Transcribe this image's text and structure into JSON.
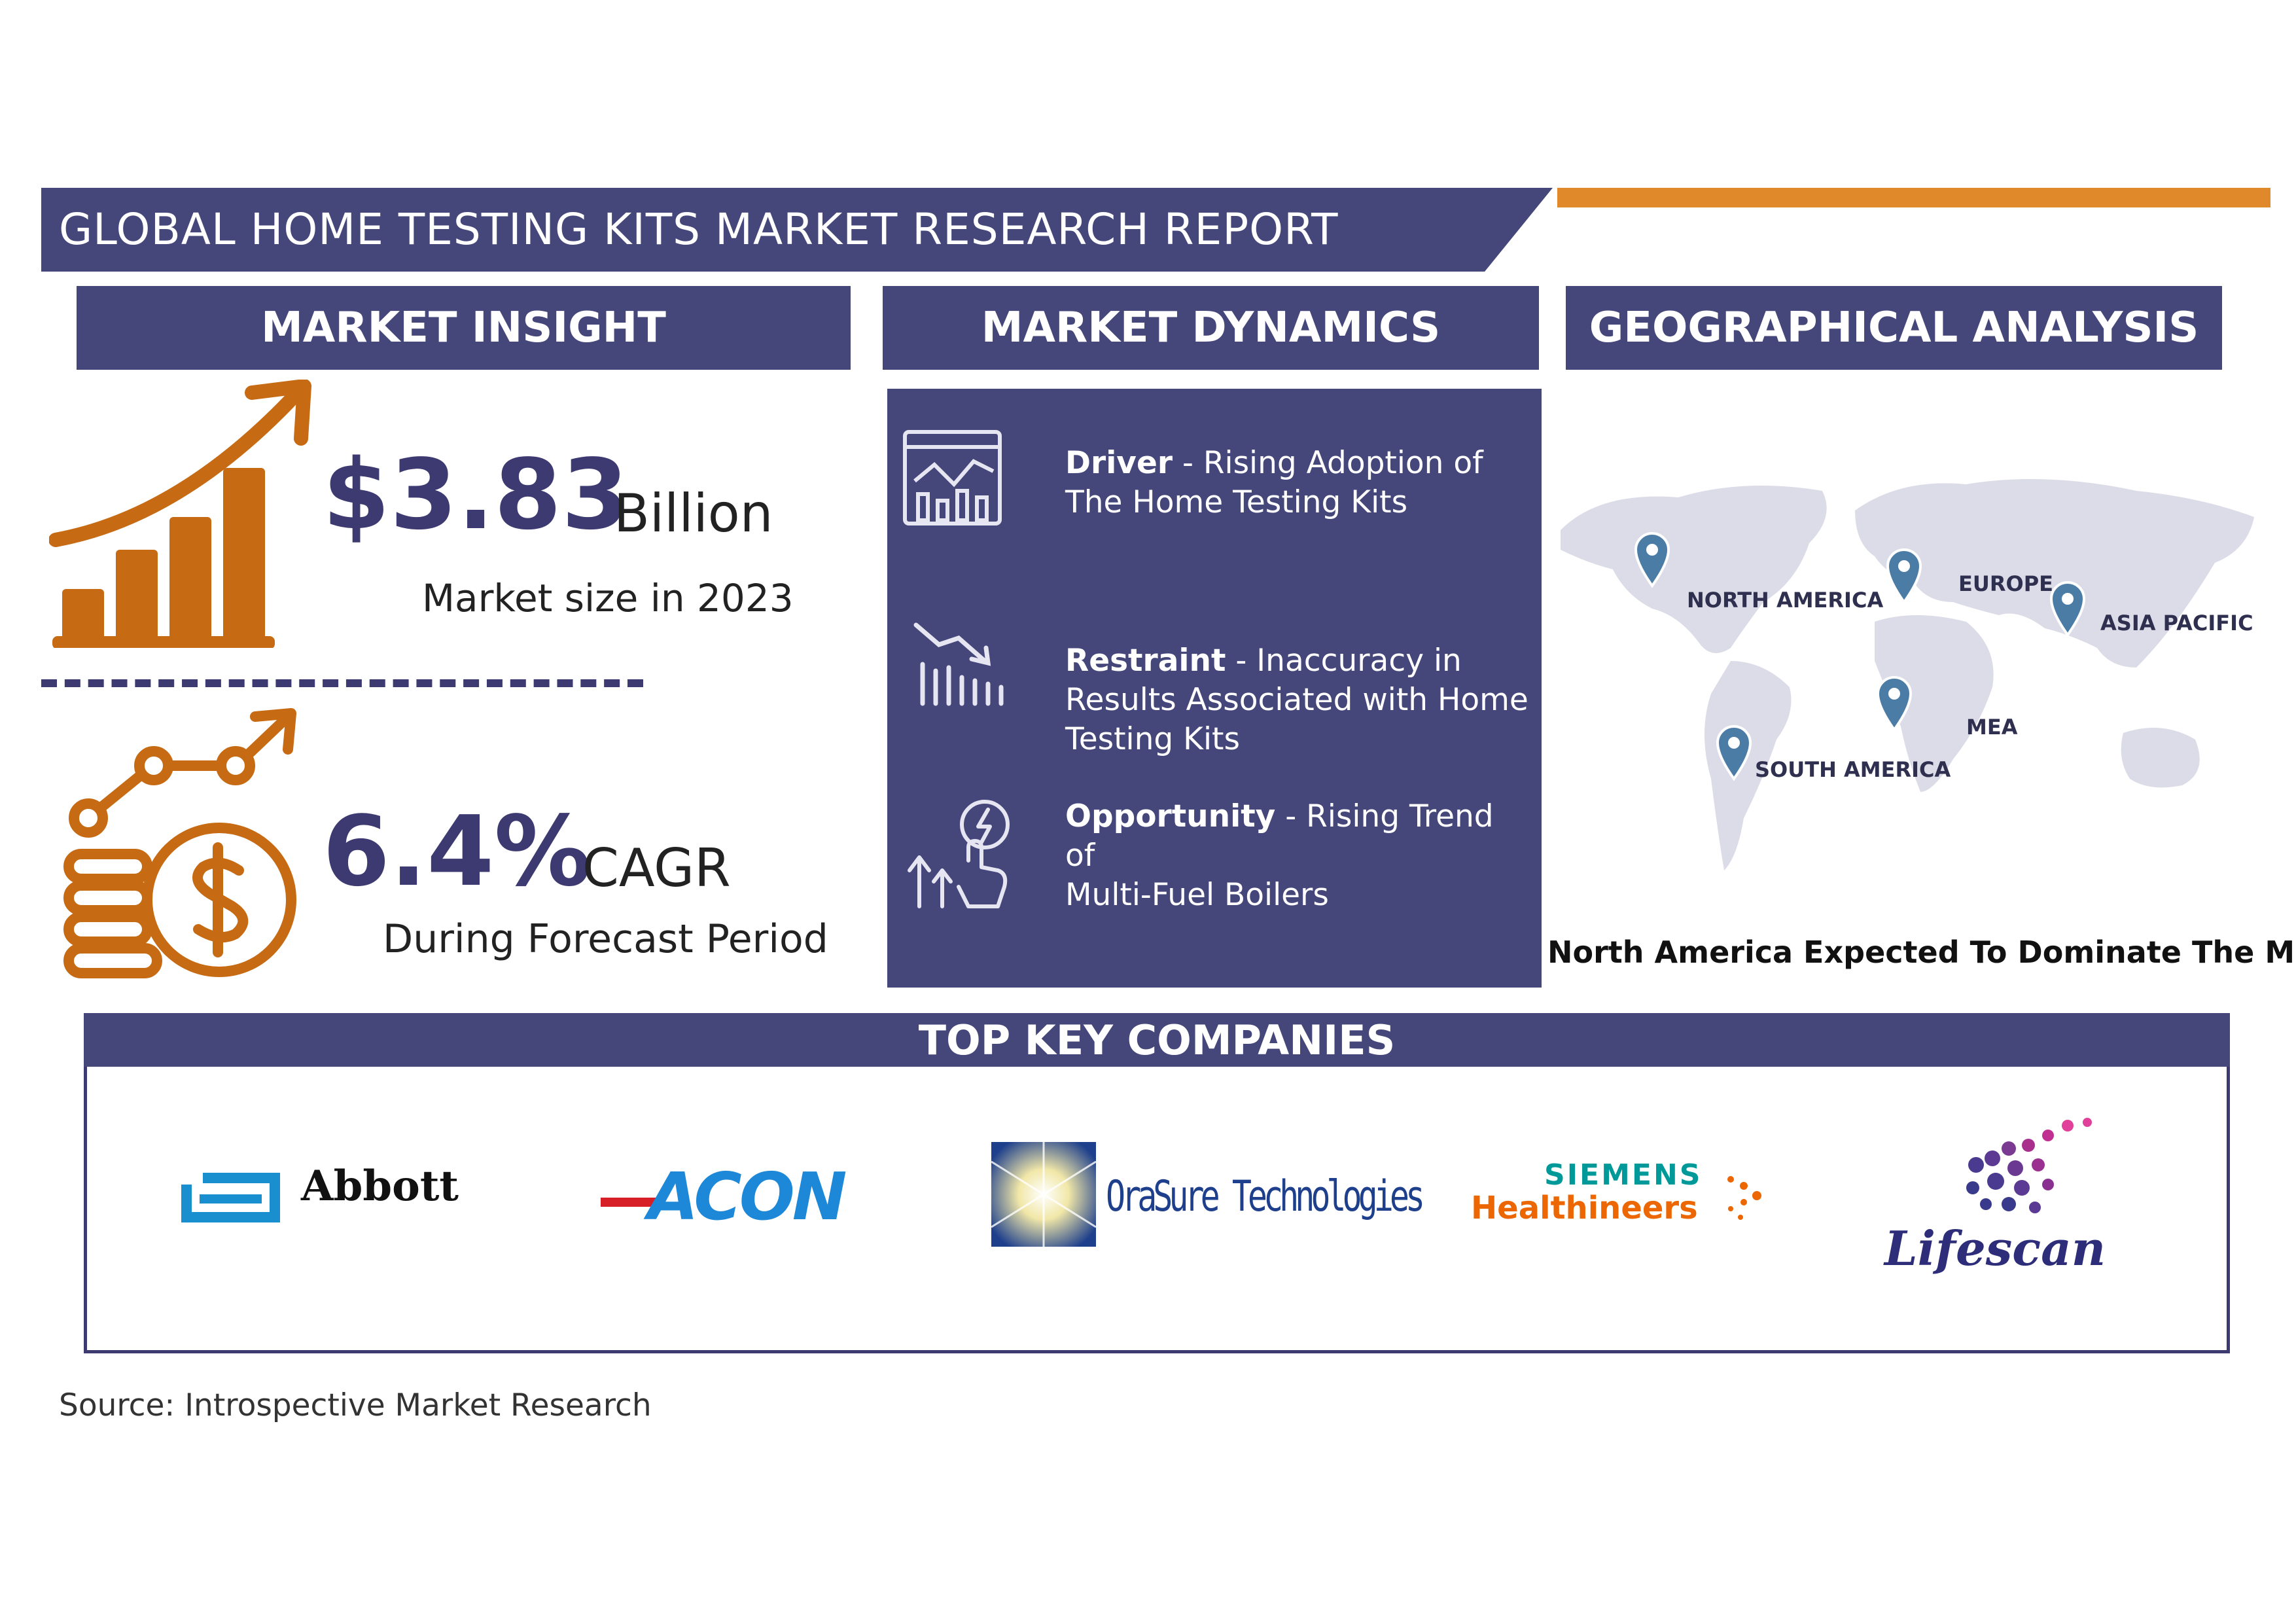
{
  "header": {
    "title": "GLOBAL HOME TESTING KITS MARKET RESEARCH REPORT"
  },
  "sections": {
    "market_insight": "MARKET INSIGHT",
    "market_dynamics": "MARKET DYNAMICS",
    "geographical_analysis": "GEOGRAPHICAL ANALYSIS"
  },
  "insight": {
    "market_size_value": "$3.83",
    "market_size_unit": "Billion",
    "market_size_caption": "Market size in 2023",
    "cagr_value": "6.4%",
    "cagr_unit": "CAGR",
    "cagr_caption": "During Forecast Period"
  },
  "dynamics": {
    "driver_label": "Driver",
    "driver_text_1": "- Rising Adoption of",
    "driver_text_2": "The Home Testing Kits",
    "restraint_label": "Restraint",
    "restraint_text_1": "- Inaccuracy in",
    "restraint_text_2": "Results Associated with Home",
    "restraint_text_3": "Testing Kits",
    "opportunity_label": "Opportunity",
    "opportunity_text_1": "- Rising Trend of",
    "opportunity_text_2": "Multi-Fuel Boilers"
  },
  "geo": {
    "regions": [
      "NORTH AMERICA",
      "EUROPE",
      "ASIA PACIFIC",
      "MEA",
      "SOUTH AMERICA"
    ],
    "caption": "North America Expected To Dominate The Market"
  },
  "companies": {
    "header": "TOP KEY COMPANIES",
    "logos": [
      "Abbott",
      "ACON",
      "OraSure Technologies",
      "SIEMENS",
      "Healthineers",
      "Lifescan"
    ]
  },
  "source": "Source: Introspective Market Research",
  "colors": {
    "navy": "#45467a",
    "orange": "#e0892a",
    "icon_orange": "#c66b14"
  }
}
